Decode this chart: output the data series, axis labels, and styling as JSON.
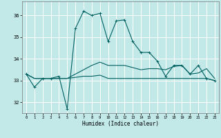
{
  "xlabel": "Humidex (Indice chaleur)",
  "background_color": "#c2e8e8",
  "grid_color": "#ffffff",
  "line_color": "#006060",
  "xlim": [
    -0.5,
    23.5
  ],
  "ylim": [
    31.5,
    36.65
  ],
  "xticks": [
    0,
    1,
    2,
    3,
    4,
    5,
    6,
    7,
    8,
    9,
    10,
    11,
    12,
    13,
    14,
    15,
    16,
    17,
    18,
    19,
    20,
    21,
    22,
    23
  ],
  "yticks": [
    32,
    33,
    34,
    35,
    36
  ],
  "line1_marker": [
    33.3,
    32.7,
    33.1,
    33.1,
    33.2,
    31.7,
    35.4,
    36.2,
    36.0,
    36.1,
    34.8,
    35.75,
    35.8,
    34.8,
    34.3,
    34.3,
    33.9,
    33.2,
    33.7,
    33.7,
    33.3,
    33.7,
    33.1,
    33.0
  ],
  "line2_flat": [
    33.3,
    33.1,
    33.1,
    33.1,
    33.1,
    33.1,
    33.15,
    33.2,
    33.2,
    33.25,
    33.1,
    33.1,
    33.1,
    33.1,
    33.1,
    33.1,
    33.1,
    33.1,
    33.1,
    33.1,
    33.1,
    33.1,
    33.1,
    33.0
  ],
  "line3_rise": [
    33.3,
    33.1,
    33.1,
    33.1,
    33.1,
    33.1,
    33.3,
    33.5,
    33.7,
    33.85,
    33.7,
    33.7,
    33.7,
    33.6,
    33.5,
    33.55,
    33.55,
    33.5,
    33.65,
    33.7,
    33.3,
    33.35,
    33.55,
    33.1
  ]
}
